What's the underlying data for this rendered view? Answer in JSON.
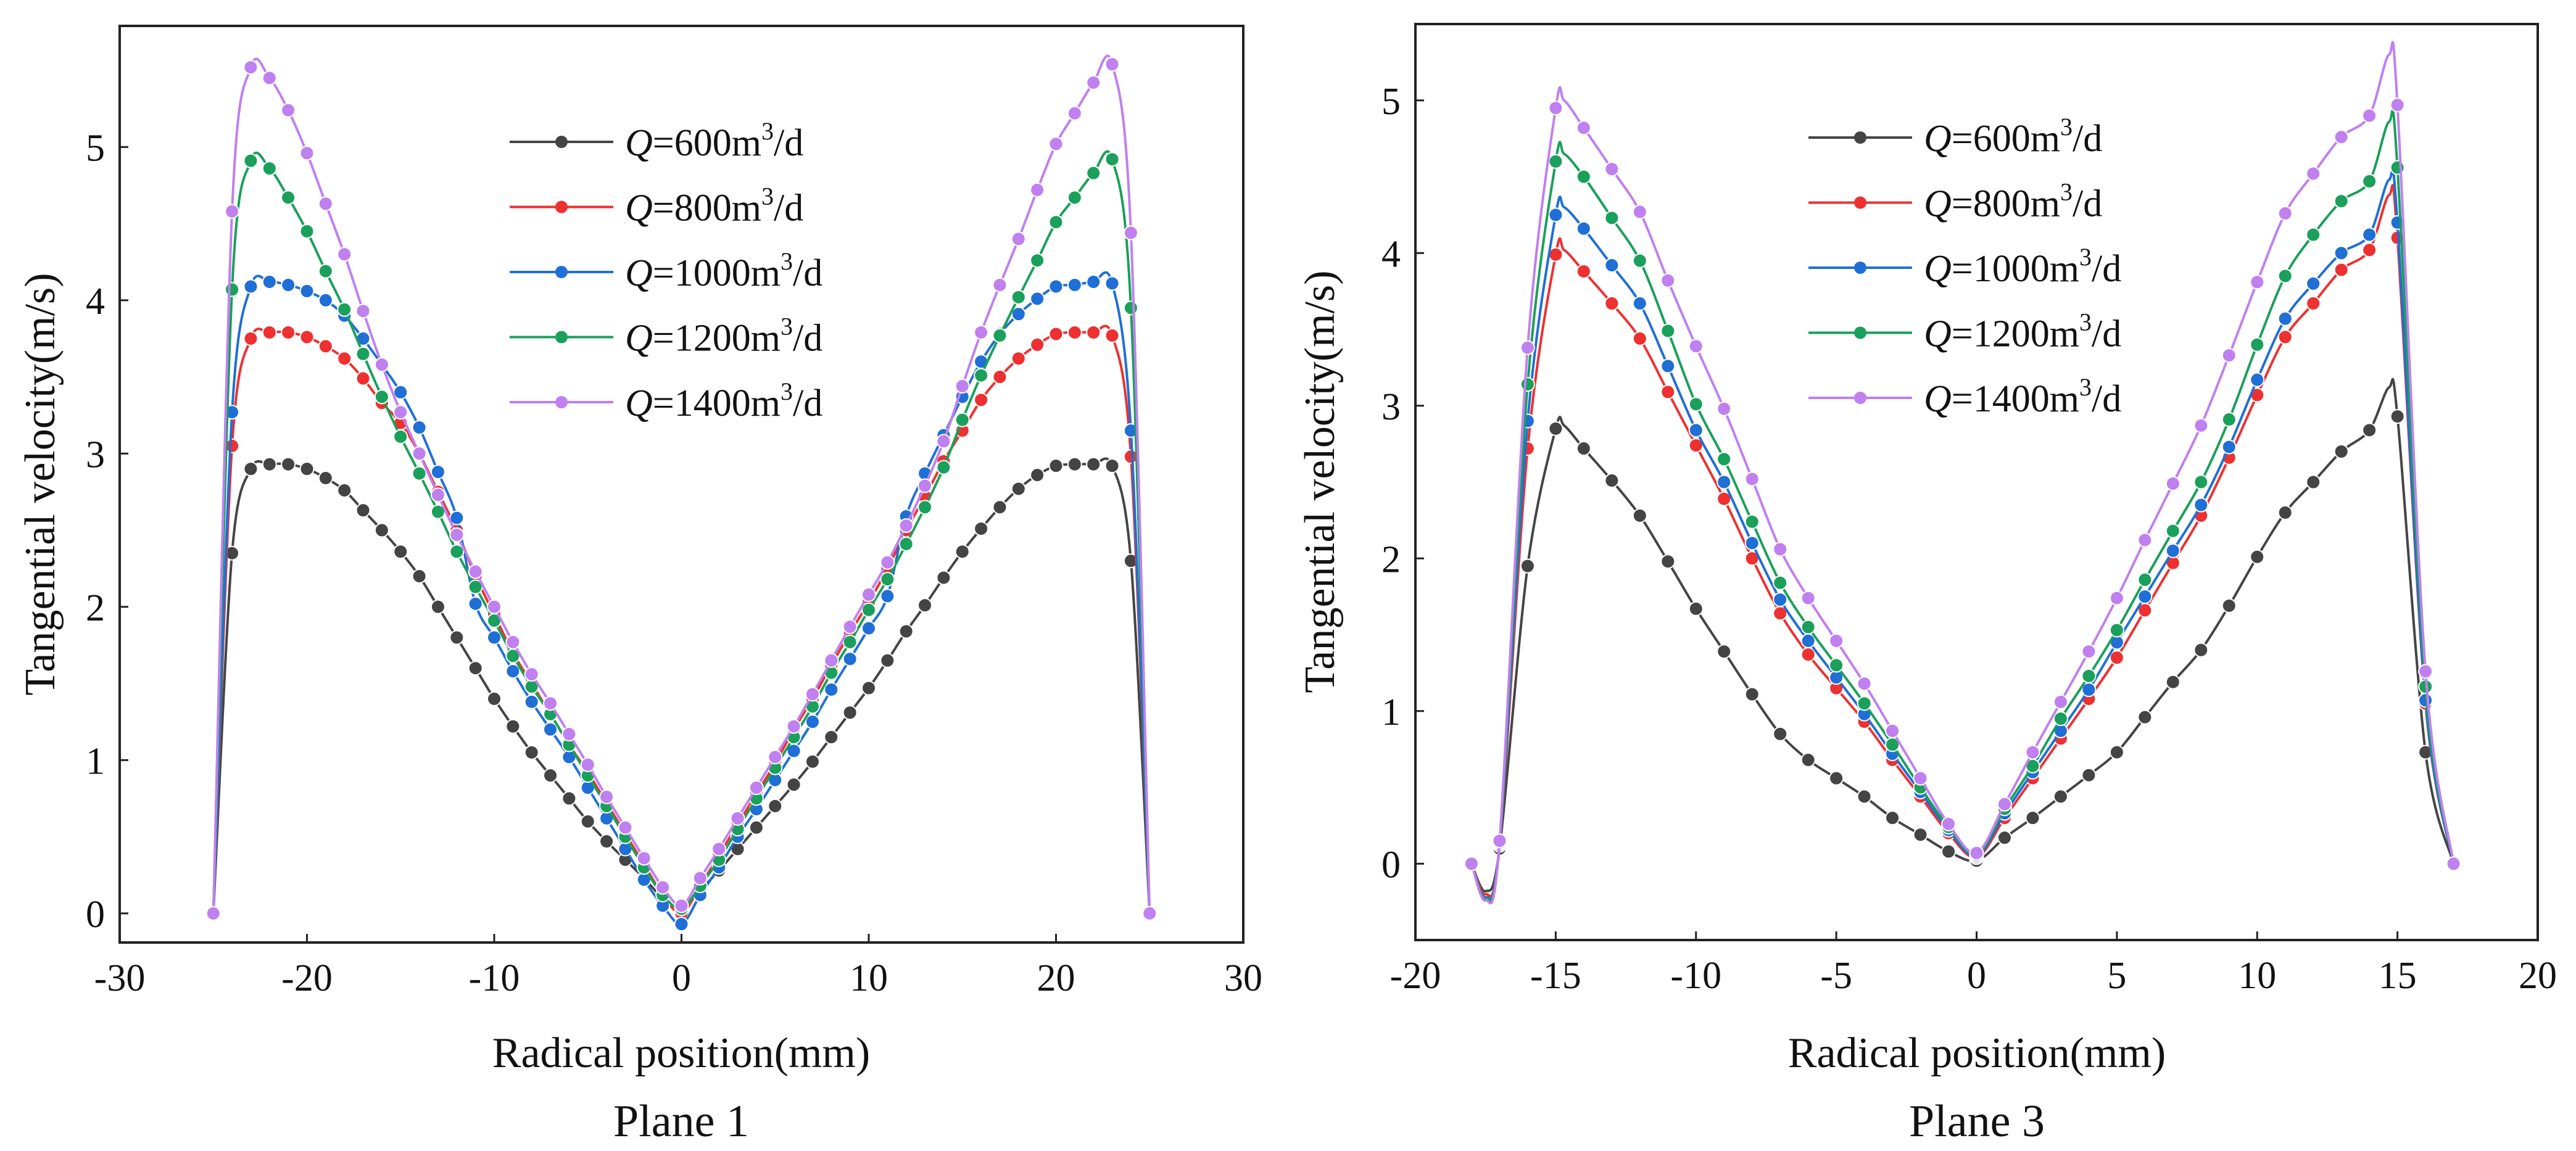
{
  "chart_data": [
    {
      "type": "line",
      "title": "Plane 1",
      "xlabel": "Radical position(mm)",
      "ylabel": "Tangential velocity(m/s)",
      "xlim": [
        -30,
        30
      ],
      "ylim": [
        -0.19,
        5.79
      ],
      "xticks": [
        -30,
        -20,
        -10,
        0,
        10,
        20,
        30
      ],
      "yticks": [
        0,
        1,
        2,
        3,
        4,
        5
      ],
      "legend_position": "top-center",
      "x": [
        -25,
        -24,
        -23,
        -22,
        -21,
        -20,
        -19,
        -18,
        -17,
        -16,
        -15,
        -14,
        -13,
        -12,
        -11,
        -10,
        -9,
        -8,
        -7,
        -6,
        -5,
        -4,
        -3,
        -2,
        -1,
        0,
        1,
        2,
        3,
        4,
        5,
        6,
        7,
        8,
        9,
        10,
        11,
        12,
        13,
        14,
        15,
        16,
        17,
        18,
        19,
        20,
        21,
        22,
        23,
        24,
        25
      ],
      "series": [
        {
          "name": "Q=600m³/d",
          "color": "#444444",
          "values": [
            0,
            2.35,
            2.9,
            2.93,
            2.93,
            2.9,
            2.84,
            2.76,
            2.63,
            2.5,
            2.36,
            2.2,
            2.0,
            1.8,
            1.6,
            1.4,
            1.22,
            1.05,
            0.9,
            0.75,
            0.6,
            0.47,
            0.35,
            0.23,
            0.1,
            0.03,
            0.15,
            0.28,
            0.42,
            0.56,
            0.7,
            0.84,
            0.99,
            1.15,
            1.31,
            1.47,
            1.65,
            1.84,
            2.01,
            2.19,
            2.36,
            2.51,
            2.65,
            2.77,
            2.86,
            2.92,
            2.93,
            2.93,
            2.92,
            2.3,
            0
          ]
        },
        {
          "name": "Q=800m³/d",
          "color": "#ee3030",
          "values": [
            0,
            3.05,
            3.75,
            3.79,
            3.79,
            3.76,
            3.7,
            3.62,
            3.49,
            3.33,
            3.2,
            3.0,
            2.75,
            2.5,
            2.2,
            1.95,
            1.7,
            1.5,
            1.3,
            1.1,
            0.92,
            0.72,
            0.52,
            0.32,
            0.12,
            0.0,
            0.18,
            0.38,
            0.58,
            0.78,
            0.98,
            1.2,
            1.4,
            1.62,
            1.83,
            2.03,
            2.25,
            2.5,
            2.72,
            2.95,
            3.15,
            3.35,
            3.5,
            3.62,
            3.71,
            3.78,
            3.79,
            3.79,
            3.77,
            2.98,
            0
          ]
        },
        {
          "name": "Q=1000m³/d",
          "color": "#1f6fd6",
          "values": [
            0,
            3.27,
            4.09,
            4.12,
            4.1,
            4.06,
            4.0,
            3.9,
            3.75,
            3.58,
            3.4,
            3.17,
            2.88,
            2.58,
            2.02,
            1.8,
            1.58,
            1.38,
            1.2,
            1.02,
            0.82,
            0.62,
            0.42,
            0.22,
            0.05,
            -0.07,
            0.12,
            0.3,
            0.5,
            0.68,
            0.87,
            1.06,
            1.25,
            1.46,
            1.66,
            1.86,
            2.07,
            2.59,
            2.87,
            3.12,
            3.37,
            3.6,
            3.78,
            3.91,
            4.01,
            4.09,
            4.1,
            4.12,
            4.11,
            3.15,
            0
          ]
        },
        {
          "name": "Q=1200m³/d",
          "color": "#1aa05a",
          "values": [
            0,
            4.07,
            4.91,
            4.86,
            4.67,
            4.45,
            4.19,
            3.94,
            3.65,
            3.37,
            3.11,
            2.87,
            2.62,
            2.36,
            2.13,
            1.91,
            1.68,
            1.48,
            1.3,
            1.1,
            0.9,
            0.7,
            0.5,
            0.3,
            0.12,
            0.03,
            0.18,
            0.35,
            0.55,
            0.75,
            0.95,
            1.15,
            1.35,
            1.57,
            1.77,
            1.98,
            2.18,
            2.41,
            2.65,
            2.91,
            3.22,
            3.51,
            3.77,
            4.02,
            4.26,
            4.51,
            4.67,
            4.83,
            4.92,
            3.95,
            0
          ]
        },
        {
          "name": "Q=1400m³/d",
          "color": "#c080f0",
          "values": [
            0,
            4.58,
            5.52,
            5.45,
            5.24,
            4.96,
            4.63,
            4.3,
            3.93,
            3.58,
            3.27,
            3.0,
            2.73,
            2.47,
            2.23,
            2.0,
            1.77,
            1.56,
            1.37,
            1.17,
            0.97,
            0.76,
            0.56,
            0.36,
            0.17,
            0.05,
            0.23,
            0.42,
            0.62,
            0.82,
            1.02,
            1.22,
            1.43,
            1.65,
            1.87,
            2.08,
            2.29,
            2.53,
            2.79,
            3.08,
            3.44,
            3.79,
            4.1,
            4.4,
            4.72,
            5.02,
            5.22,
            5.42,
            5.54,
            4.44,
            0
          ]
        }
      ]
    },
    {
      "type": "line",
      "title": "Plane 3",
      "xlabel": "Radical position(mm)",
      "ylabel": "Tangential velocity(m/s)",
      "xlim": [
        -20,
        20
      ],
      "ylim": [
        -0.5,
        5.5
      ],
      "xticks": [
        -20,
        -15,
        -10,
        -5,
        0,
        5,
        10,
        15,
        20
      ],
      "yticks": [
        0,
        1,
        2,
        3,
        4,
        5
      ],
      "legend_position": "top-center",
      "x": [
        -18,
        -17.5,
        -17,
        -16,
        -15,
        -14.7,
        -14,
        -13,
        -12,
        -11,
        -10,
        -9,
        -8,
        -7,
        -6,
        -5,
        -4,
        -3,
        -2,
        -1,
        0,
        1,
        2,
        3,
        4,
        5,
        6,
        7,
        8,
        9,
        10,
        11,
        12,
        13,
        14,
        14.7,
        15,
        16,
        17
      ],
      "series": [
        {
          "name": "Q=600m³/d",
          "color": "#444444",
          "values": [
            0,
            -0.18,
            0.1,
            1.95,
            2.85,
            2.87,
            2.72,
            2.51,
            2.28,
            1.98,
            1.67,
            1.39,
            1.11,
            0.85,
            0.68,
            0.56,
            0.44,
            0.3,
            0.19,
            0.08,
            0.02,
            0.17,
            0.3,
            0.44,
            0.58,
            0.73,
            0.96,
            1.19,
            1.4,
            1.69,
            2.01,
            2.3,
            2.5,
            2.7,
            2.84,
            3.12,
            2.93,
            0.73,
            0
          ]
        },
        {
          "name": "Q=800m³/d",
          "color": "#ee3030",
          "values": [
            0,
            -0.2,
            0.12,
            2.72,
            3.99,
            4.02,
            3.88,
            3.67,
            3.44,
            3.09,
            2.74,
            2.39,
            2.0,
            1.64,
            1.37,
            1.15,
            0.93,
            0.68,
            0.44,
            0.2,
            0.04,
            0.3,
            0.56,
            0.82,
            1.08,
            1.35,
            1.66,
            1.97,
            2.28,
            2.66,
            3.07,
            3.45,
            3.67,
            3.89,
            4.02,
            4.38,
            4.1,
            1.05,
            0
          ]
        },
        {
          "name": "Q=1000m³/d",
          "color": "#1f6fd6",
          "values": [
            0,
            -0.22,
            0.13,
            2.9,
            4.25,
            4.3,
            4.16,
            3.92,
            3.67,
            3.26,
            2.84,
            2.5,
            2.1,
            1.73,
            1.46,
            1.22,
            0.98,
            0.72,
            0.47,
            0.22,
            0.05,
            0.33,
            0.6,
            0.87,
            1.14,
            1.45,
            1.75,
            2.05,
            2.35,
            2.73,
            3.17,
            3.57,
            3.8,
            4.0,
            4.12,
            4.48,
            4.2,
            1.07,
            0
          ]
        },
        {
          "name": "Q=1200m³/d",
          "color": "#1aa05a",
          "values": [
            0,
            -0.23,
            0.14,
            3.14,
            4.6,
            4.65,
            4.5,
            4.23,
            3.95,
            3.49,
            3.01,
            2.65,
            2.24,
            1.84,
            1.55,
            1.3,
            1.05,
            0.78,
            0.5,
            0.24,
            0.06,
            0.36,
            0.64,
            0.95,
            1.23,
            1.53,
            1.86,
            2.18,
            2.5,
            2.91,
            3.4,
            3.85,
            4.12,
            4.34,
            4.47,
            4.86,
            4.56,
            1.16,
            0
          ]
        },
        {
          "name": "Q=1400m³/d",
          "color": "#c080f0",
          "values": [
            0,
            -0.24,
            0.15,
            3.38,
            4.95,
            5.0,
            4.82,
            4.55,
            4.27,
            3.82,
            3.39,
            2.98,
            2.52,
            2.06,
            1.74,
            1.46,
            1.18,
            0.87,
            0.56,
            0.26,
            0.07,
            0.39,
            0.73,
            1.06,
            1.39,
            1.74,
            2.12,
            2.49,
            2.87,
            3.33,
            3.81,
            4.26,
            4.52,
            4.76,
            4.9,
            5.3,
            4.97,
            1.26,
            0
          ]
        }
      ]
    }
  ]
}
